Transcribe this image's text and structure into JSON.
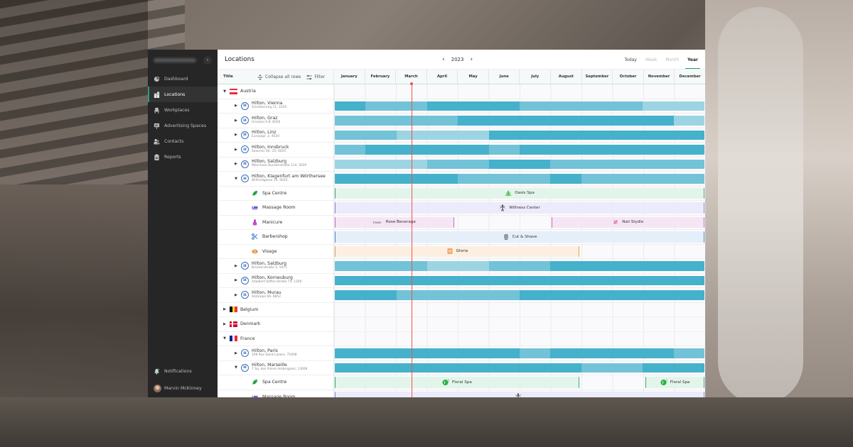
{
  "sidebar": {
    "logo_text": "Logitype Logo",
    "items": [
      {
        "label": "Dashboard",
        "icon": "dashboard-icon",
        "active": false
      },
      {
        "label": "Locations",
        "icon": "buildings-icon",
        "active": true
      },
      {
        "label": "Workplaces",
        "icon": "chair-icon",
        "active": false
      },
      {
        "label": "Advertising Spaces",
        "icon": "billboard-icon",
        "active": false
      },
      {
        "label": "Contacts",
        "icon": "contacts-icon",
        "active": false
      },
      {
        "label": "Reports",
        "icon": "clipboard-icon",
        "active": false
      }
    ],
    "notifications_label": "Notifications",
    "user_name": "Marvin McKinney"
  },
  "header": {
    "title": "Locations",
    "year": "2023",
    "prev_icon": "chevron-left-icon",
    "next_icon": "chevron-right-icon",
    "views": [
      {
        "label": "Today",
        "state": "normal"
      },
      {
        "label": "Week",
        "state": "disabled"
      },
      {
        "label": "Month",
        "state": "disabled"
      },
      {
        "label": "Year",
        "state": "active"
      }
    ]
  },
  "columns": {
    "title": "Title",
    "collapse_label": "Collapse all rows",
    "filter_label": "Filter",
    "months": [
      "January",
      "February",
      "March",
      "April",
      "May",
      "June",
      "July",
      "August",
      "September",
      "October",
      "November",
      "December"
    ]
  },
  "colors": {
    "accent": "#2e9e6a",
    "bar_dark": "#45b1cb",
    "bar_mid": "#72c2d8",
    "bar_light": "#9dd4e3",
    "now_line": "#ef5350"
  },
  "today_marker_month_position": 2.5,
  "rows": [
    {
      "type": "country",
      "name": "Austria",
      "expanded": true,
      "flag": "austria"
    },
    {
      "type": "hotel",
      "name": "Hilton, Vienna",
      "address": "Schottenring 11, 1010",
      "expanded": false,
      "segments": [
        [
          "dark",
          0,
          1
        ],
        [
          "mid",
          1,
          3
        ],
        [
          "dark",
          3,
          6
        ],
        [
          "mid",
          6,
          10
        ],
        [
          "light",
          10,
          12
        ]
      ]
    },
    {
      "type": "hotel",
      "name": "Hilton, Graz",
      "address": "Grieskai 4-8, 8020",
      "expanded": false,
      "segments": [
        [
          "mid",
          0,
          4
        ],
        [
          "dark",
          4,
          11
        ],
        [
          "light",
          11,
          12
        ]
      ]
    },
    {
      "type": "hotel",
      "name": "Hilton, Linz",
      "address": "Europapl. 2, 4020",
      "expanded": false,
      "segments": [
        [
          "mid",
          0,
          2
        ],
        [
          "light",
          2,
          5
        ],
        [
          "dark",
          5,
          12
        ]
      ]
    },
    {
      "type": "hotel",
      "name": "Hilton, Innsbruck",
      "address": "Salurner Str. 15, 6020",
      "expanded": false,
      "segments": [
        [
          "mid",
          0,
          1
        ],
        [
          "dark",
          1,
          5
        ],
        [
          "mid",
          5,
          6
        ],
        [
          "dark",
          6,
          12
        ]
      ]
    },
    {
      "type": "hotel",
      "name": "Hilton, Salzburg",
      "address": "Münchner Bundesstraße 114, 5020",
      "expanded": false,
      "segments": [
        [
          "light",
          0,
          3
        ],
        [
          "mid",
          3,
          5
        ],
        [
          "dark",
          5,
          7
        ],
        [
          "mid",
          7,
          12
        ]
      ]
    },
    {
      "type": "hotel",
      "name": "Hilton,  Klagenfurt am Wörthersee",
      "address": "Wilfriedgasse 19, 9020",
      "expanded": true,
      "segments": [
        [
          "dark",
          0,
          4
        ],
        [
          "mid",
          4,
          7
        ],
        [
          "dark",
          7,
          8
        ],
        [
          "mid",
          8,
          12
        ]
      ]
    },
    {
      "type": "space",
      "name": "Spa Centre",
      "icon": "leaf-icon",
      "bookings": [
        {
          "label": "Oasis Spa",
          "start": 0,
          "end": 12,
          "bg": "#e3f5ea",
          "edge": "#3ba86a",
          "icon": "lotus-icon"
        }
      ]
    },
    {
      "type": "space",
      "name": "Massage Room",
      "icon": "massage-icon",
      "bookings": [
        {
          "label": "Willness Center",
          "start": 0,
          "end": 12,
          "bg": "#ecebfb",
          "edge": "#8a7fd6",
          "icon": "yoga-icon"
        }
      ]
    },
    {
      "type": "space",
      "name": "Manicure",
      "icon": "nail-polish-icon",
      "bookings": [
        {
          "label": "Rose Beverage",
          "start": 0,
          "end": 3.9,
          "bg": "#f6e5f4",
          "edge": "#c06ac0",
          "icon": "rose-logo-icon"
        },
        {
          "label": "Nail Stydio",
          "start": 7,
          "end": 12,
          "bg": "#f6e5f4",
          "edge": "#c06ac0",
          "icon": "nail-logo-icon"
        }
      ]
    },
    {
      "type": "space",
      "name": "Barbershop",
      "icon": "scissors-icon",
      "bookings": [
        {
          "label": "Cut & Shave",
          "start": 0,
          "end": 12,
          "bg": "#e4eff9",
          "edge": "#4a86c8",
          "icon": "barber-icon"
        }
      ]
    },
    {
      "type": "space",
      "name": "Visage",
      "icon": "eye-icon",
      "bookings": [
        {
          "label": "Gloria",
          "start": 0,
          "end": 7.95,
          "bg": "#fcefe2",
          "edge": "#e0a050",
          "icon": "gloria-logo-icon"
        }
      ]
    },
    {
      "type": "hotel",
      "name": "Hilton, Salzburg",
      "address": "Brückenstraße 5, 5071",
      "expanded": false,
      "segments": [
        [
          "mid",
          0,
          3
        ],
        [
          "light",
          3,
          5
        ],
        [
          "mid",
          5,
          7
        ],
        [
          "dark",
          7,
          12
        ]
      ]
    },
    {
      "type": "hotel",
      "name": "Hilton, Korneuburg",
      "address": "Adalbert-Stifter-Straße 73, 1200",
      "expanded": false,
      "segments": [
        [
          "dark",
          0,
          12
        ]
      ]
    },
    {
      "type": "hotel",
      "name": "Hilton, Murau",
      "address": "Stolzalpe 69, 8852",
      "expanded": false,
      "segments": [
        [
          "dark",
          0,
          2
        ],
        [
          "mid",
          2,
          6
        ],
        [
          "dark",
          6,
          12
        ]
      ]
    },
    {
      "type": "country",
      "name": "Belgium",
      "expanded": false,
      "flag": "belgium"
    },
    {
      "type": "country",
      "name": "Denmark",
      "expanded": false,
      "flag": "denmark"
    },
    {
      "type": "country",
      "name": "France",
      "expanded": true,
      "flag": "france"
    },
    {
      "type": "hotel",
      "name": "Hilton, Paris",
      "address": "108 Rue Saint-Lazare, 75008",
      "expanded": false,
      "segments": [
        [
          "dark",
          0,
          6
        ],
        [
          "mid",
          6,
          7
        ],
        [
          "dark",
          7,
          11
        ],
        [
          "mid",
          11,
          12
        ]
      ]
    },
    {
      "type": "hotel",
      "name": "Hilton,  Marseille",
      "address": "7 Sq. des Frères Ambrogiani, 13008",
      "expanded": true,
      "segments": [
        [
          "dark",
          0,
          8
        ],
        [
          "mid",
          8,
          10
        ],
        [
          "dark",
          10,
          12
        ]
      ]
    },
    {
      "type": "space",
      "name": "Spa Centre",
      "icon": "leaf-icon",
      "bookings": [
        {
          "label": "Floral Spa",
          "start": 0,
          "end": 7.95,
          "bg": "#e3f5ea",
          "edge": "#3ba86a",
          "icon": "floral-logo-icon"
        },
        {
          "label": "Floral Spa",
          "start": 10.05,
          "end": 12,
          "bg": "#e3f5ea",
          "edge": "#3ba86a",
          "icon": "floral-logo-icon"
        }
      ]
    },
    {
      "type": "space",
      "name": "Massage Room",
      "icon": "massage-icon",
      "bookings": [
        {
          "label": "",
          "start": 0,
          "end": 12,
          "bg": "#ecebfb",
          "edge": "#8a7fd6",
          "icon": "yoga-icon"
        }
      ]
    }
  ]
}
